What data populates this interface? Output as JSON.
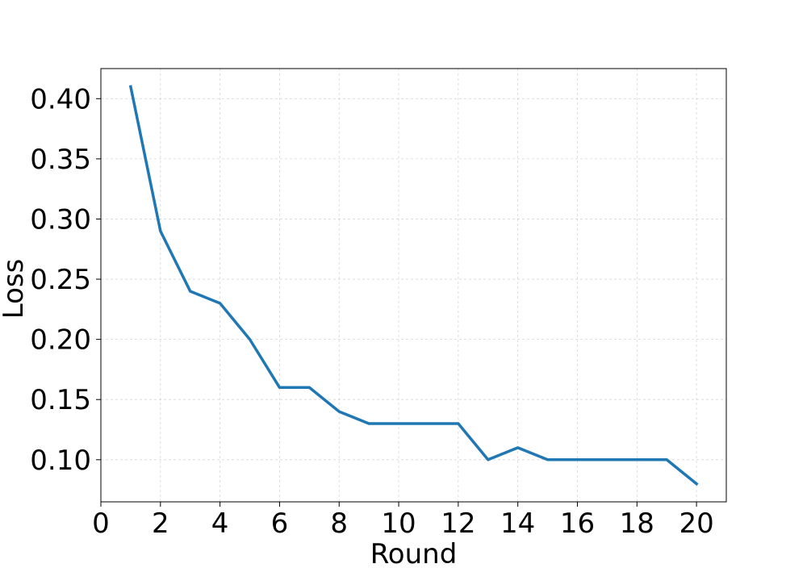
{
  "chart_data": {
    "type": "line",
    "title": "",
    "xlabel": "Round",
    "ylabel": "Loss",
    "xlim": [
      0,
      21
    ],
    "ylim": [
      0.065,
      0.425
    ],
    "xticks": [
      0,
      2,
      4,
      6,
      8,
      10,
      12,
      14,
      16,
      18,
      20
    ],
    "xtick_labels": [
      "0",
      "2",
      "4",
      "6",
      "8",
      "10",
      "12",
      "14",
      "16",
      "18",
      "20"
    ],
    "yticks": [
      0.1,
      0.15,
      0.2,
      0.25,
      0.3,
      0.35,
      0.4
    ],
    "ytick_labels": [
      "0.10",
      "0.15",
      "0.20",
      "0.25",
      "0.30",
      "0.35",
      "0.40"
    ],
    "grid": true,
    "legend": false,
    "series": [
      {
        "color": "#1f77b4",
        "x": [
          1,
          2,
          3,
          4,
          5,
          6,
          7,
          8,
          9,
          10,
          11,
          12,
          13,
          14,
          15,
          16,
          17,
          18,
          19,
          20
        ],
        "y": [
          0.41,
          0.29,
          0.24,
          0.23,
          0.2,
          0.16,
          0.16,
          0.14,
          0.13,
          0.13,
          0.13,
          0.13,
          0.1,
          0.11,
          0.1,
          0.1,
          0.1,
          0.1,
          0.1,
          0.08
        ]
      }
    ]
  }
}
